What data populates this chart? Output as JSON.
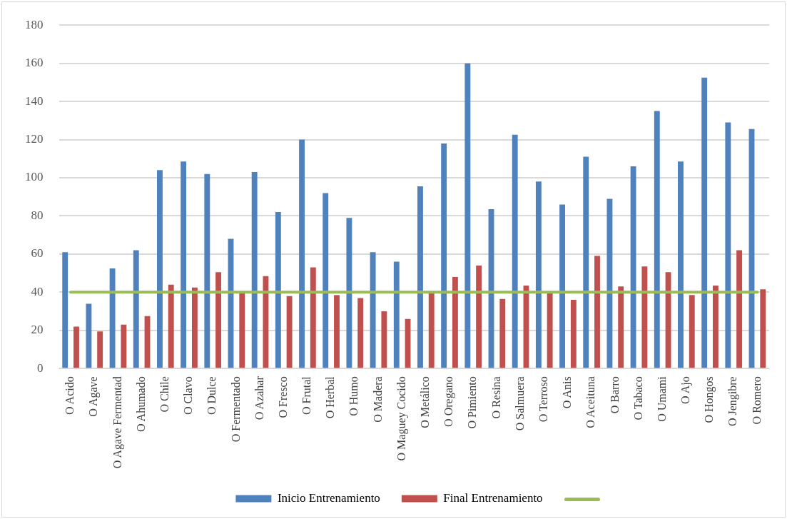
{
  "chart_data": {
    "type": "bar",
    "categories": [
      "O Acido",
      "O Agave",
      "O Agave Fermentad",
      "O Ahumado",
      "O Chile",
      "O Clavo",
      "O Dulce",
      "O Fermentado",
      "O Azahar",
      "O Fresco",
      "O Frutal",
      "O Herbal",
      "O Humo",
      "O Madera",
      "O Maguey Cocido",
      "O Metálico",
      "O Oregano",
      "O Pimiento",
      "O Resina",
      "O Salmuera",
      "O Terroso",
      "O Anis",
      "O Aceituna",
      "O Barro",
      "O Tabaco",
      "O Umami",
      "O Ajo",
      "O Hongos",
      "O Jengibre",
      "O Romero"
    ],
    "series": [
      {
        "name": "Inicio Entrenamiento",
        "color": "#4f81bd",
        "values": [
          61,
          34,
          52.5,
          62,
          104,
          108.5,
          102,
          68,
          103,
          82,
          120,
          92,
          79,
          61,
          56,
          95.5,
          118,
          160,
          83.5,
          122.5,
          98,
          86,
          111,
          89,
          106,
          135,
          108.5,
          152.5,
          129,
          125.5
        ]
      },
      {
        "name": "Final Entrenamiento",
        "color": "#c0504d",
        "values": [
          22,
          19.5,
          23,
          27.5,
          44,
          42.5,
          50.5,
          40,
          48.5,
          38,
          53,
          38.5,
          37,
          30,
          26,
          40,
          48,
          54,
          36.5,
          43.5,
          40,
          36,
          59,
          43,
          53.5,
          50.5,
          38.5,
          43.5,
          62,
          41.5
        ]
      },
      {
        "type": "line",
        "color": "#9bbb59",
        "values": [
          40,
          40,
          40,
          40,
          40,
          40,
          40,
          40,
          40,
          40,
          40,
          40,
          40,
          40,
          40,
          40,
          40,
          40,
          40,
          40,
          40,
          40,
          40,
          40,
          40,
          40,
          40,
          40,
          40,
          40
        ]
      }
    ],
    "ylim": [
      0,
      180
    ],
    "yticks": [
      0,
      20,
      40,
      60,
      80,
      100,
      120,
      140,
      160,
      180
    ],
    "grid": "y",
    "legend": "bottom",
    "marker": "none"
  }
}
